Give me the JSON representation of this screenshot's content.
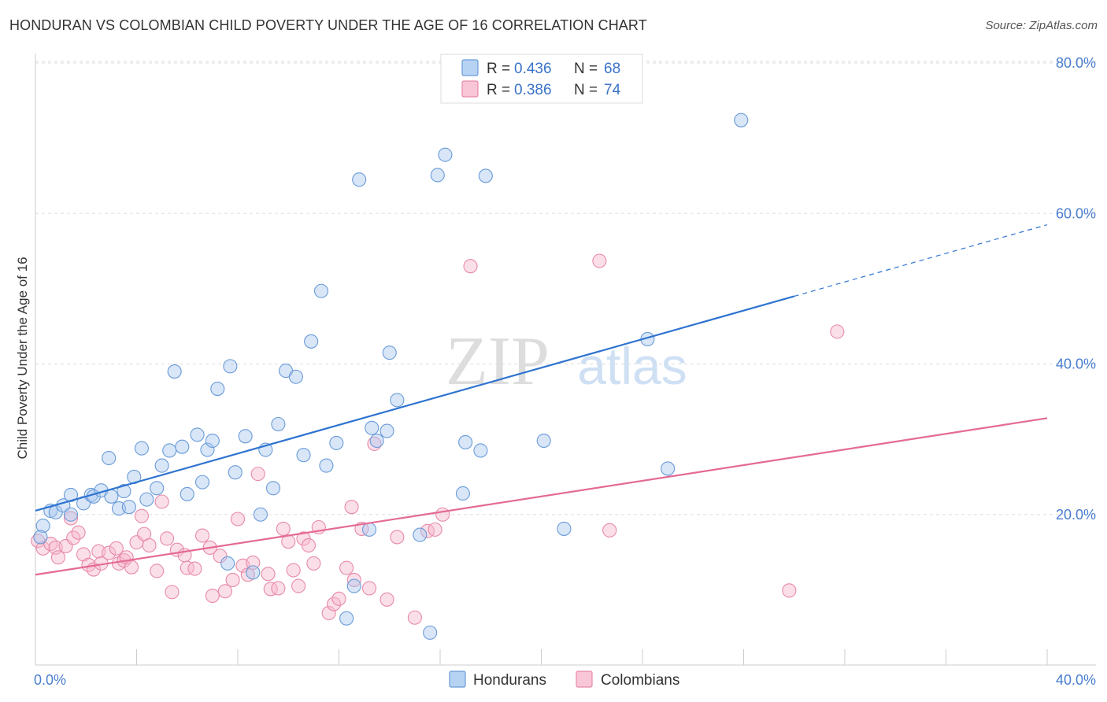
{
  "title": "HONDURAN VS COLOMBIAN CHILD POVERTY UNDER THE AGE OF 16 CORRELATION CHART",
  "source": "Source: ZipAtlas.com",
  "watermark": {
    "zip": "ZIP",
    "atlas": "atlas"
  },
  "colors": {
    "blue_fill": "#a8c8f0",
    "blue_stroke": "#6a9bd8",
    "blue_line": "#2f74d0",
    "pink_fill": "#f6b8cc",
    "pink_stroke": "#e88aa8",
    "pink_line": "#e46a96",
    "tick_label": "#4a7fd0",
    "grid": "#dddddd"
  },
  "legend_top": [
    {
      "r_label": "R = ",
      "r_value": "0.436",
      "n_label": "N = ",
      "n_value": "68",
      "color": "blue"
    },
    {
      "r_label": "R = ",
      "r_value": "0.386",
      "n_label": "N = ",
      "n_value": "74",
      "color": "pink"
    }
  ],
  "legend_bottom": [
    {
      "label": "Hondurans",
      "color": "blue"
    },
    {
      "label": "Colombians",
      "color": "pink"
    }
  ],
  "chart_data": {
    "type": "scatter",
    "ylabel": "Child Poverty Under the Age of 16",
    "xlim": [
      0,
      40
    ],
    "ylim": [
      0,
      80
    ],
    "x_tick_labels": [
      "0.0%",
      "40.0%"
    ],
    "y_ticks": [
      20,
      40,
      60,
      80
    ],
    "y_tick_labels": [
      "20.0%",
      "40.0%",
      "60.0%",
      "80.0%"
    ],
    "grid": true,
    "series": [
      {
        "name": "Hondurans",
        "color": "blue",
        "trend": {
          "x0": 0,
          "y0": 20.5,
          "x1": 30,
          "y1": 49,
          "dash_to_x": 40,
          "dash_to_y": 58.5
        },
        "points": [
          [
            0.3,
            18.5
          ],
          [
            0.6,
            20.5
          ],
          [
            0.8,
            20.3
          ],
          [
            1.1,
            21.2
          ],
          [
            1.4,
            20.0
          ],
          [
            1.4,
            22.6
          ],
          [
            1.9,
            21.5
          ],
          [
            2.2,
            22.6
          ],
          [
            2.3,
            22.4
          ],
          [
            2.6,
            23.2
          ],
          [
            2.9,
            27.5
          ],
          [
            3.0,
            22.4
          ],
          [
            3.3,
            20.8
          ],
          [
            3.5,
            23.1
          ],
          [
            3.7,
            21.0
          ],
          [
            3.9,
            25.0
          ],
          [
            4.2,
            28.8
          ],
          [
            4.4,
            22.0
          ],
          [
            4.8,
            23.5
          ],
          [
            5.0,
            26.5
          ],
          [
            5.3,
            28.5
          ],
          [
            5.5,
            39.0
          ],
          [
            5.8,
            29.0
          ],
          [
            6.0,
            22.7
          ],
          [
            6.4,
            30.6
          ],
          [
            6.6,
            24.3
          ],
          [
            6.8,
            28.6
          ],
          [
            7.0,
            29.8
          ],
          [
            7.2,
            36.7
          ],
          [
            7.6,
            13.5
          ],
          [
            7.7,
            39.7
          ],
          [
            7.9,
            25.6
          ],
          [
            8.3,
            30.4
          ],
          [
            8.6,
            12.3
          ],
          [
            8.9,
            20.0
          ],
          [
            9.1,
            28.6
          ],
          [
            9.4,
            23.5
          ],
          [
            9.6,
            32.0
          ],
          [
            9.9,
            39.1
          ],
          [
            10.3,
            38.3
          ],
          [
            10.6,
            27.9
          ],
          [
            10.9,
            43.0
          ],
          [
            11.3,
            49.7
          ],
          [
            11.5,
            26.5
          ],
          [
            11.9,
            29.5
          ],
          [
            12.3,
            6.2
          ],
          [
            12.6,
            10.5
          ],
          [
            12.8,
            64.5
          ],
          [
            13.2,
            18.0
          ],
          [
            13.3,
            31.5
          ],
          [
            13.5,
            29.8
          ],
          [
            13.9,
            31.1
          ],
          [
            14.0,
            41.5
          ],
          [
            14.3,
            35.2
          ],
          [
            15.2,
            17.3
          ],
          [
            15.6,
            4.3
          ],
          [
            15.9,
            65.1
          ],
          [
            16.2,
            67.8
          ],
          [
            16.9,
            22.8
          ],
          [
            17.0,
            29.6
          ],
          [
            17.6,
            28.5
          ],
          [
            17.8,
            65.0
          ],
          [
            20.1,
            29.8
          ],
          [
            20.9,
            18.1
          ],
          [
            24.2,
            43.3
          ],
          [
            25.0,
            26.1
          ],
          [
            27.9,
            72.4
          ],
          [
            0.2,
            17.0
          ]
        ]
      },
      {
        "name": "Colombians",
        "color": "pink",
        "trend": {
          "x0": 0,
          "y0": 12,
          "x1": 40,
          "y1": 32.8
        },
        "points": [
          [
            0.1,
            16.5
          ],
          [
            0.3,
            15.5
          ],
          [
            0.6,
            16.1
          ],
          [
            0.8,
            15.6
          ],
          [
            0.9,
            14.3
          ],
          [
            1.2,
            15.8
          ],
          [
            1.4,
            19.5
          ],
          [
            1.5,
            16.9
          ],
          [
            1.7,
            17.6
          ],
          [
            1.9,
            14.7
          ],
          [
            2.1,
            13.3
          ],
          [
            2.3,
            12.7
          ],
          [
            2.5,
            15.1
          ],
          [
            2.6,
            13.5
          ],
          [
            2.9,
            14.9
          ],
          [
            3.2,
            15.5
          ],
          [
            3.3,
            13.5
          ],
          [
            3.5,
            13.9
          ],
          [
            3.6,
            14.3
          ],
          [
            3.8,
            13.0
          ],
          [
            4.0,
            16.3
          ],
          [
            4.2,
            19.8
          ],
          [
            4.3,
            17.4
          ],
          [
            4.5,
            15.9
          ],
          [
            4.8,
            12.5
          ],
          [
            5.0,
            21.7
          ],
          [
            5.2,
            16.8
          ],
          [
            5.4,
            9.7
          ],
          [
            5.6,
            15.3
          ],
          [
            5.9,
            14.6
          ],
          [
            6.0,
            12.9
          ],
          [
            6.3,
            12.8
          ],
          [
            6.6,
            17.2
          ],
          [
            6.9,
            15.6
          ],
          [
            7.0,
            9.2
          ],
          [
            7.3,
            14.5
          ],
          [
            7.5,
            9.8
          ],
          [
            7.8,
            11.3
          ],
          [
            8.0,
            19.4
          ],
          [
            8.2,
            13.2
          ],
          [
            8.4,
            12.0
          ],
          [
            8.6,
            13.6
          ],
          [
            8.8,
            25.4
          ],
          [
            9.2,
            12.1
          ],
          [
            9.3,
            10.1
          ],
          [
            9.6,
            10.2
          ],
          [
            9.8,
            18.1
          ],
          [
            10.0,
            16.4
          ],
          [
            10.2,
            12.6
          ],
          [
            10.4,
            10.5
          ],
          [
            10.6,
            16.8
          ],
          [
            10.8,
            15.9
          ],
          [
            11.0,
            13.5
          ],
          [
            11.2,
            18.3
          ],
          [
            11.6,
            6.9
          ],
          [
            11.8,
            8.1
          ],
          [
            12.0,
            8.8
          ],
          [
            12.3,
            12.9
          ],
          [
            12.5,
            21.0
          ],
          [
            12.6,
            11.3
          ],
          [
            12.9,
            18.1
          ],
          [
            13.2,
            10.2
          ],
          [
            13.4,
            29.4
          ],
          [
            13.9,
            8.7
          ],
          [
            14.3,
            17.0
          ],
          [
            15.0,
            6.3
          ],
          [
            15.5,
            17.8
          ],
          [
            15.8,
            18.0
          ],
          [
            16.1,
            20.0
          ],
          [
            17.2,
            53.0
          ],
          [
            22.3,
            53.7
          ],
          [
            22.7,
            17.9
          ],
          [
            29.8,
            9.9
          ],
          [
            31.7,
            44.3
          ]
        ]
      }
    ]
  }
}
